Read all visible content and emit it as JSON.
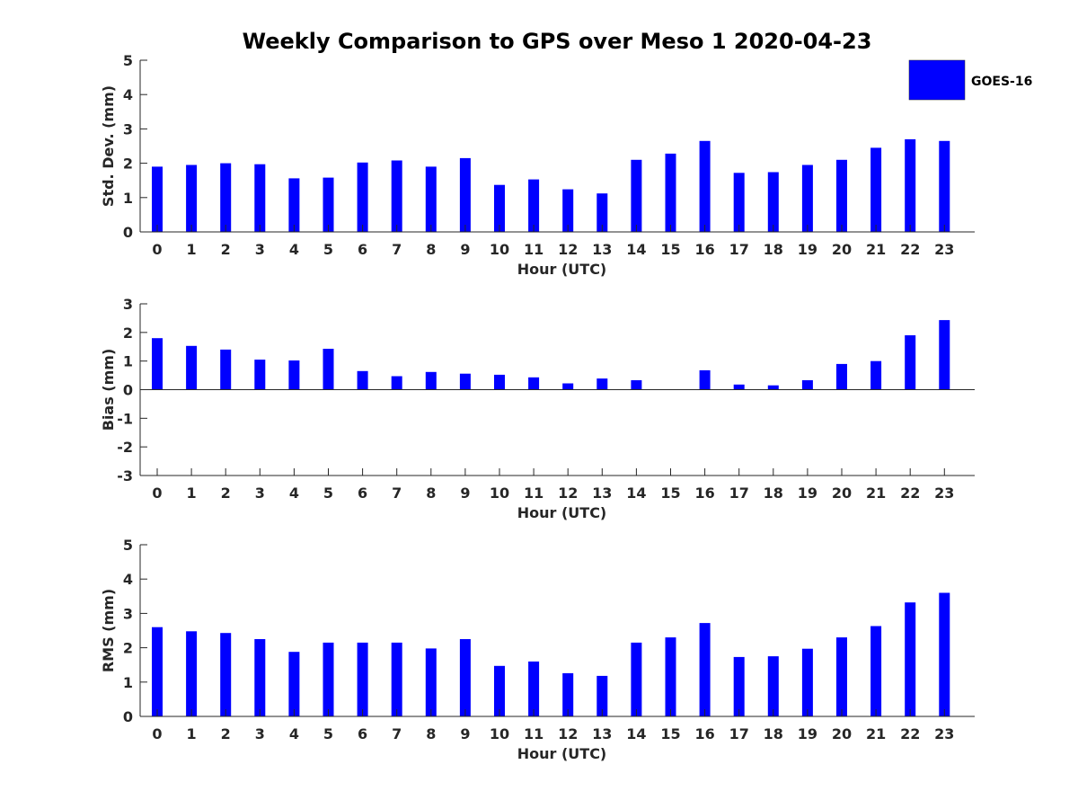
{
  "figure": {
    "title": "Weekly Comparison to GPS over Meso 1 2020-04-23",
    "bar_color": "#0000ff",
    "legend": {
      "label": "GOES-16",
      "placement": "top-right"
    }
  },
  "chart_data": [
    {
      "type": "bar",
      "xlabel": "Hour (UTC)",
      "ylabel": "Std. Dev. (mm)",
      "ylim": [
        0,
        5
      ],
      "yticks": [
        0,
        1,
        2,
        3,
        4,
        5
      ],
      "categories": [
        "0",
        "1",
        "2",
        "3",
        "4",
        "5",
        "6",
        "7",
        "8",
        "9",
        "10",
        "11",
        "12",
        "13",
        "14",
        "15",
        "16",
        "17",
        "18",
        "19",
        "20",
        "21",
        "22",
        "23"
      ],
      "series": [
        {
          "name": "GOES-16",
          "values": [
            1.9,
            1.95,
            2.0,
            1.97,
            1.56,
            1.58,
            2.02,
            2.08,
            1.9,
            2.15,
            1.37,
            1.53,
            1.24,
            1.12,
            2.1,
            2.28,
            2.65,
            1.72,
            1.74,
            1.95,
            2.1,
            2.45,
            2.7,
            2.65
          ]
        }
      ]
    },
    {
      "type": "bar",
      "xlabel": "Hour (UTC)",
      "ylabel": "Bias (mm)",
      "ylim": [
        -3,
        3
      ],
      "yticks": [
        -3,
        -2,
        -1,
        0,
        1,
        2,
        3
      ],
      "categories": [
        "0",
        "1",
        "2",
        "3",
        "4",
        "5",
        "6",
        "7",
        "8",
        "9",
        "10",
        "11",
        "12",
        "13",
        "14",
        "15",
        "16",
        "17",
        "18",
        "19",
        "20",
        "21",
        "22",
        "23"
      ],
      "series": [
        {
          "name": "GOES-16",
          "values": [
            1.8,
            1.53,
            1.4,
            1.05,
            1.02,
            1.43,
            0.65,
            0.47,
            0.62,
            0.56,
            0.52,
            0.43,
            0.22,
            0.39,
            0.33,
            0.0,
            0.68,
            0.18,
            0.15,
            0.33,
            0.9,
            1.0,
            1.9,
            2.43
          ]
        }
      ]
    },
    {
      "type": "bar",
      "xlabel": "Hour (UTC)",
      "ylabel": "RMS (mm)",
      "ylim": [
        0,
        5
      ],
      "yticks": [
        0,
        1,
        2,
        3,
        4,
        5
      ],
      "categories": [
        "0",
        "1",
        "2",
        "3",
        "4",
        "5",
        "6",
        "7",
        "8",
        "9",
        "10",
        "11",
        "12",
        "13",
        "14",
        "15",
        "16",
        "17",
        "18",
        "19",
        "20",
        "21",
        "22",
        "23"
      ],
      "series": [
        {
          "name": "GOES-16",
          "values": [
            2.6,
            2.48,
            2.43,
            2.25,
            1.88,
            2.15,
            2.15,
            2.15,
            1.98,
            2.25,
            1.47,
            1.6,
            1.26,
            1.18,
            2.15,
            2.3,
            2.72,
            1.73,
            1.75,
            1.97,
            2.3,
            2.63,
            3.32,
            3.6
          ]
        }
      ]
    }
  ]
}
